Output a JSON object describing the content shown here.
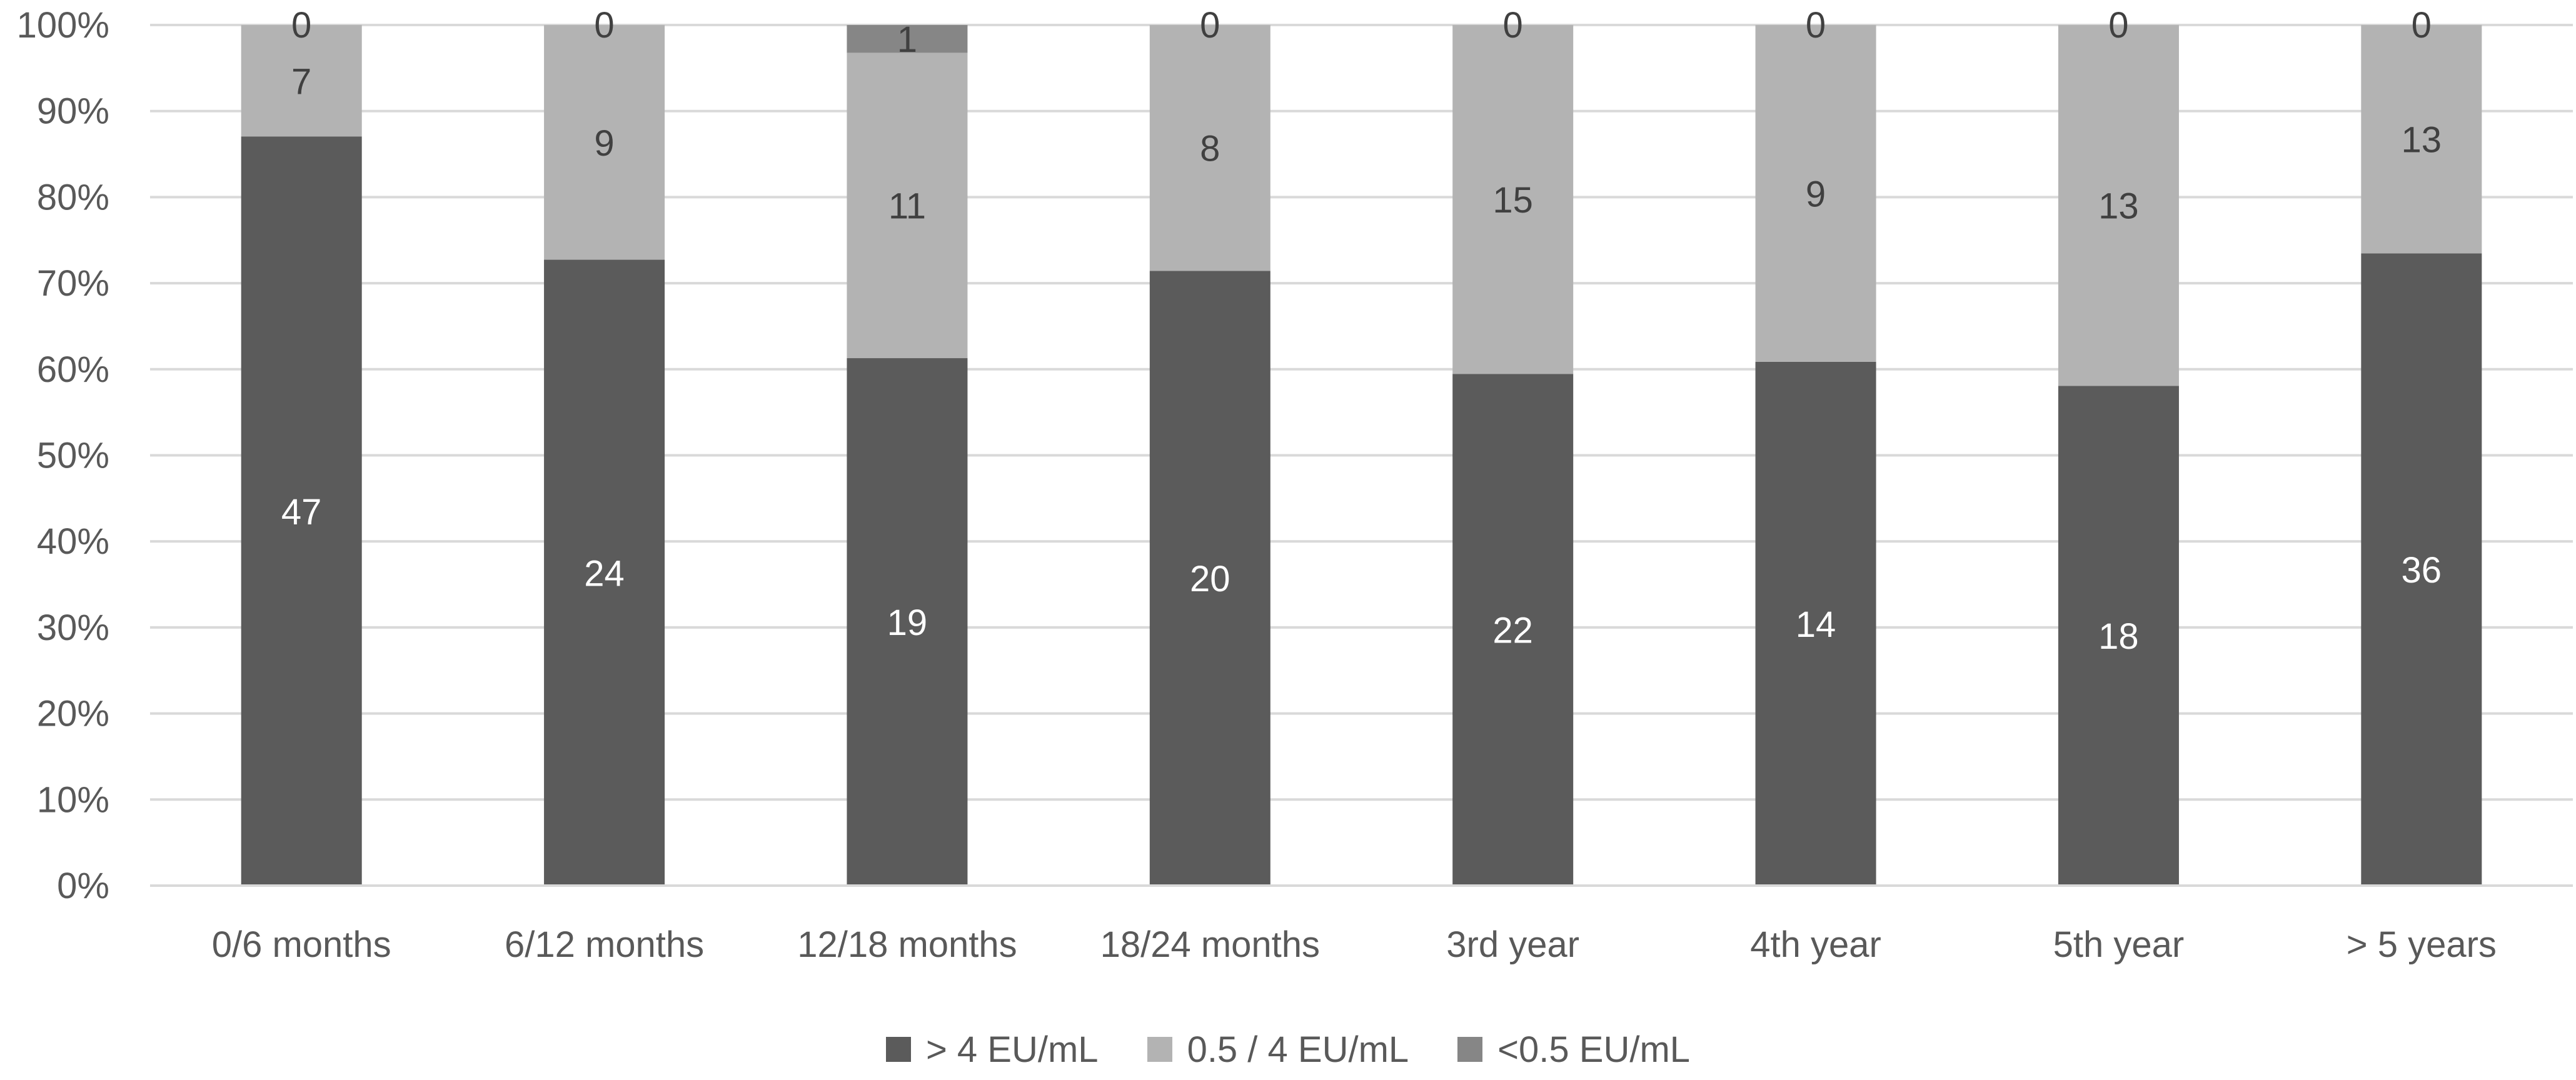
{
  "chart_data": {
    "type": "bar",
    "stacked": true,
    "normalized_percent": true,
    "categories": [
      "0/6 months",
      "6/12 months",
      "12/18 months",
      "18/24 months",
      "3rd year",
      "4th year",
      "5th year",
      "> 5 years"
    ],
    "series": [
      {
        "name": "> 4 EU/mL",
        "values": [
          47,
          24,
          19,
          20,
          22,
          14,
          18,
          36
        ],
        "color": "#5b5b5b",
        "label_color": "#ffffff"
      },
      {
        "name": "0.5 / 4 EU/mL",
        "values": [
          7,
          9,
          11,
          8,
          15,
          9,
          13,
          13
        ],
        "color": "#b3b3b3",
        "label_color": "#404040"
      },
      {
        "name": "<0.5 EU/mL",
        "values": [
          0,
          0,
          1,
          0,
          0,
          0,
          0,
          0
        ],
        "color": "#868686",
        "label_color": "#404040"
      }
    ],
    "y_axis": {
      "ticks": [
        "0%",
        "10%",
        "20%",
        "30%",
        "40%",
        "50%",
        "60%",
        "70%",
        "80%",
        "90%",
        "100%"
      ],
      "ylim": [
        0,
        100
      ],
      "unit": "%"
    },
    "grid": true,
    "gridline_color": "#d9d9d9",
    "legend_position": "bottom",
    "data_labels": true
  }
}
